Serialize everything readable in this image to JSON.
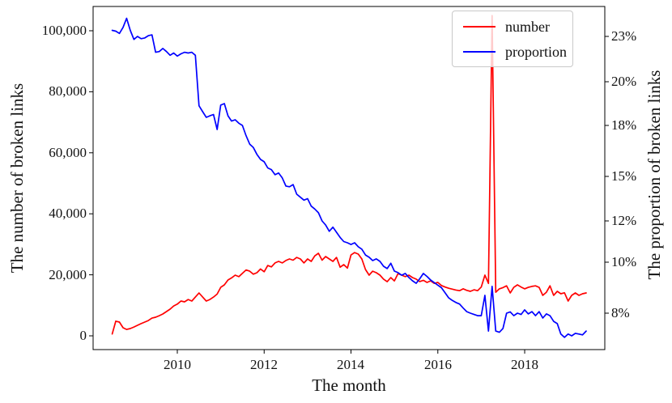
{
  "figure": {
    "background": "#ffffff",
    "axes": {
      "x": {
        "label": "The month",
        "tick_labels": [
          "2010",
          "2012",
          "2014",
          "2016",
          "2018"
        ],
        "tick_values": [
          2010,
          2012,
          2014,
          2016,
          2018
        ]
      },
      "y_left": {
        "label": "The number of broken links",
        "tick_labels": [
          "0",
          "20,000",
          "40,000",
          "60,000",
          "80,000",
          "100,000"
        ],
        "tick_values": [
          0,
          20000,
          40000,
          60000,
          80000,
          100000
        ]
      },
      "y_right": {
        "label": "The proportion of broken links",
        "tick_labels": [
          "23%",
          "20%",
          "18%",
          "15%",
          "12%",
          "10%",
          "8%"
        ],
        "tick_values": [
          23,
          20,
          18,
          15,
          12,
          10,
          8
        ]
      }
    },
    "legend": {
      "entries": [
        {
          "label": "number",
          "color": "#ff0000"
        },
        {
          "label": "proportion",
          "color": "#0000ff"
        }
      ]
    }
  },
  "chart_data": {
    "type": "line",
    "title": "",
    "xlabel": "The month",
    "ylabel_left": "The number of broken links",
    "ylabel_right": "The proportion of broken links",
    "grid": false,
    "legend_position": "upper right",
    "x_start_year": 2008.5,
    "x_step_years": 0.0833333,
    "x_range_shown": [
      2008.06,
      2019.85
    ],
    "y_left_range_shown": [
      -4500,
      108000
    ],
    "right_axis_tick_values": [
      23,
      20,
      18,
      15,
      12,
      10,
      8
    ],
    "series": [
      {
        "name": "number",
        "axis": "left",
        "color": "#ff0000",
        "values": [
          600,
          4800,
          4500,
          2650,
          2100,
          2400,
          2900,
          3450,
          4000,
          4500,
          5000,
          5800,
          6100,
          6600,
          7150,
          7950,
          8750,
          9800,
          10400,
          11400,
          11150,
          11900,
          11400,
          12700,
          14050,
          12700,
          11400,
          11900,
          12700,
          13700,
          15900,
          16700,
          18300,
          19000,
          19900,
          19400,
          20500,
          21600,
          21200,
          20200,
          20700,
          21900,
          21000,
          23050,
          22600,
          23900,
          24400,
          23900,
          24700,
          25200,
          24800,
          25700,
          25200,
          23900,
          25200,
          24400,
          26200,
          27050,
          24800,
          26000,
          25200,
          24400,
          25700,
          22500,
          23350,
          22200,
          26500,
          27300,
          26800,
          25200,
          21750,
          19900,
          21200,
          20700,
          19900,
          18600,
          17750,
          19100,
          18000,
          20400,
          19900,
          19400,
          19900,
          19100,
          18600,
          17800,
          18200,
          17500,
          18000,
          17200,
          17500,
          16500,
          16000,
          15600,
          15300,
          15000,
          14800,
          15400,
          14900,
          14600,
          15100,
          14800,
          16000,
          19900,
          17200,
          105000,
          14300,
          15400,
          15800,
          16400,
          14050,
          15900,
          16700,
          16000,
          15400,
          15900,
          16200,
          16400,
          15900,
          13250,
          14300,
          16400,
          13250,
          14600,
          13800,
          14100,
          11400,
          13250,
          14050,
          13250,
          13800,
          14050
        ]
      },
      {
        "name": "proportion",
        "axis": "right",
        "color": "#0000ff",
        "values": [
          23.4,
          23.35,
          23.2,
          23.6,
          24.2,
          23.4,
          22.8,
          23.0,
          22.85,
          22.9,
          23.05,
          23.1,
          21.95,
          22.0,
          22.2,
          22.0,
          21.75,
          21.9,
          21.7,
          21.85,
          21.95,
          21.9,
          21.95,
          21.75,
          18.9,
          18.63,
          18.37,
          18.44,
          18.5,
          17.76,
          18.93,
          19.0,
          18.44,
          18.2,
          18.26,
          18.1,
          18.0,
          17.4,
          16.9,
          16.7,
          16.3,
          16.0,
          15.86,
          15.5,
          15.4,
          15.1,
          15.2,
          14.9,
          14.35,
          14.3,
          14.45,
          13.8,
          13.6,
          13.4,
          13.5,
          13.0,
          12.8,
          12.55,
          12.0,
          11.8,
          11.5,
          11.7,
          11.45,
          11.2,
          11.0,
          10.94,
          10.86,
          10.94,
          10.75,
          10.63,
          10.35,
          10.24,
          10.08,
          10.16,
          10.04,
          9.84,
          9.75,
          9.96,
          9.65,
          9.59,
          9.49,
          9.56,
          9.4,
          9.27,
          9.17,
          9.35,
          9.56,
          9.44,
          9.3,
          9.2,
          9.1,
          9.0,
          8.8,
          8.6,
          8.5,
          8.42,
          8.36,
          8.2,
          8.06,
          8.0,
          7.95,
          7.9,
          7.9,
          8.7,
          7.3,
          9.05,
          7.3,
          7.25,
          7.4,
          8.0,
          8.05,
          7.9,
          8.0,
          7.95,
          8.13,
          7.97,
          8.06,
          7.9,
          8.06,
          7.81,
          7.97,
          7.9,
          7.68,
          7.59,
          7.18,
          7.05,
          7.18,
          7.11,
          7.21,
          7.18,
          7.15,
          7.3
        ]
      }
    ]
  }
}
